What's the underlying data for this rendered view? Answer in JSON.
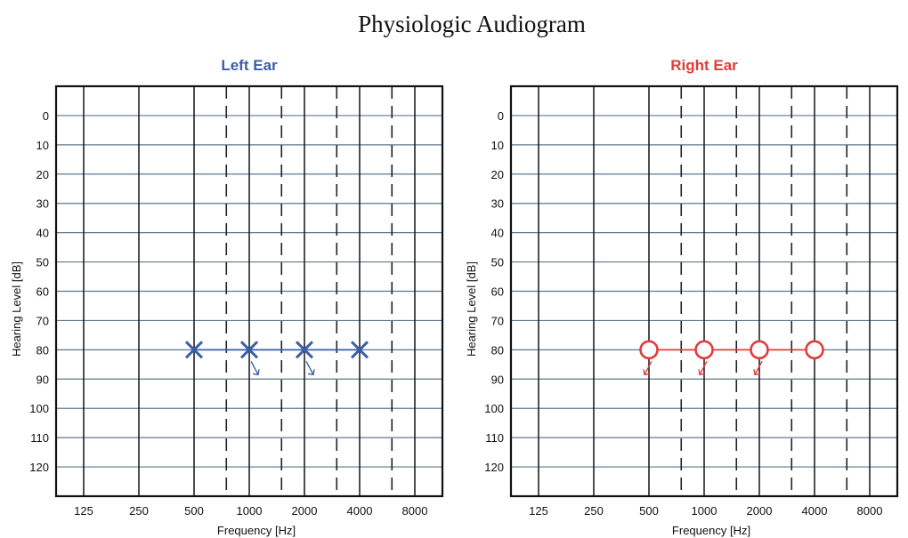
{
  "title": "Physiologic Audiogram",
  "chart_data": [
    {
      "type": "scatter",
      "title": "Left Ear",
      "title_color": "#3a5fa8",
      "xlabel": "Frequency [Hz]",
      "ylabel": "Hearing Level [dB]",
      "x_ticks": [
        "125",
        "250",
        "500",
        "1000",
        "2000",
        "4000",
        "8000"
      ],
      "x_interoctave": [
        "750",
        "1500",
        "3000",
        "6000"
      ],
      "y_ticks": [
        0,
        10,
        20,
        30,
        40,
        50,
        60,
        70,
        80,
        90,
        100,
        110,
        120
      ],
      "ylim": [
        -10,
        130
      ],
      "y_inverted": true,
      "marker": "x",
      "series_color": "#3a5fa8",
      "x": [
        500,
        1000,
        2000,
        4000
      ],
      "y": [
        80,
        80,
        80,
        80
      ],
      "no_response_at": [
        1000,
        2000
      ]
    },
    {
      "type": "scatter",
      "title": "Right Ear",
      "title_color": "#e23b3b",
      "xlabel": "Frequency [Hz]",
      "ylabel": "Hearing Level [dB]",
      "x_ticks": [
        "125",
        "250",
        "500",
        "1000",
        "2000",
        "4000",
        "8000"
      ],
      "x_interoctave": [
        "750",
        "1500",
        "3000",
        "6000"
      ],
      "y_ticks": [
        0,
        10,
        20,
        30,
        40,
        50,
        60,
        70,
        80,
        90,
        100,
        110,
        120
      ],
      "ylim": [
        -10,
        130
      ],
      "y_inverted": true,
      "marker": "o",
      "series_color": "#e23b3b",
      "x": [
        500,
        1000,
        2000,
        4000
      ],
      "y": [
        80,
        80,
        80,
        80
      ],
      "no_response_at": [
        500,
        1000,
        2000
      ]
    }
  ]
}
